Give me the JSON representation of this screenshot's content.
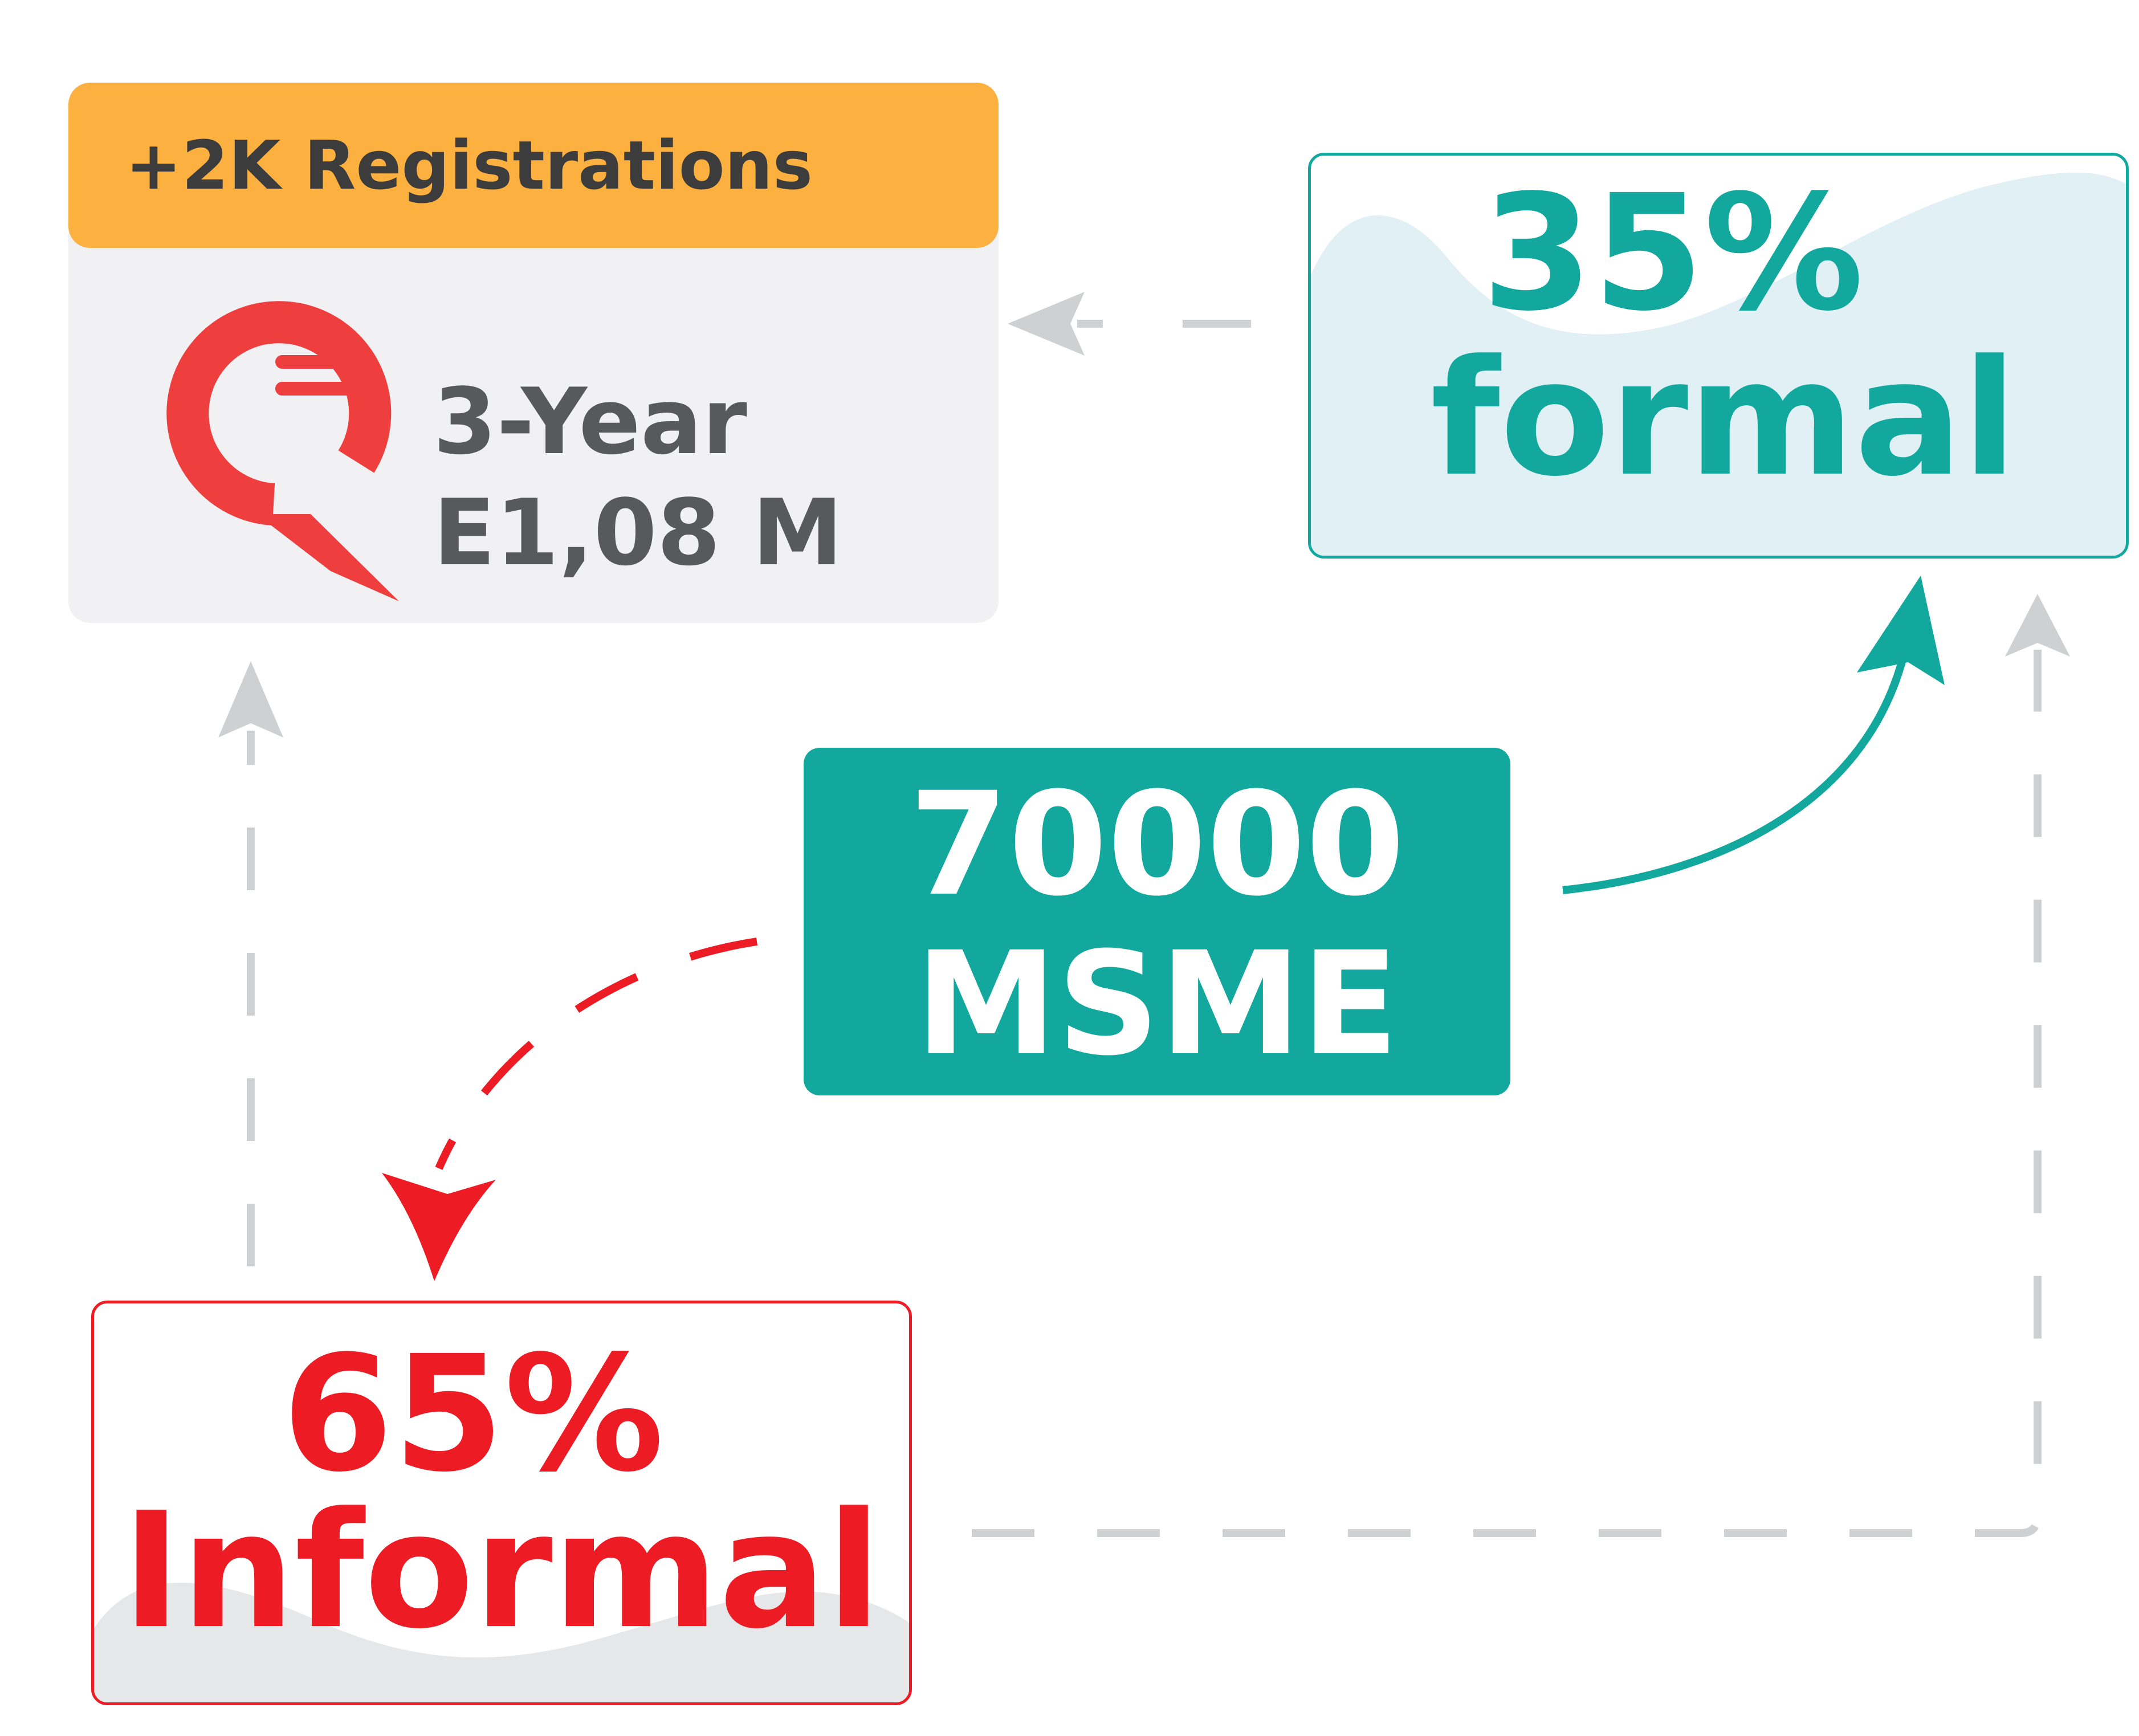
{
  "registrations_card": {
    "header": "+2K Registrations",
    "line_1": "3-Year",
    "line_2": "E1,08 M",
    "icon": "chat-bubble-icon"
  },
  "formal_card": {
    "percent": "35%",
    "label": "formal"
  },
  "msme_box": {
    "count": "70000",
    "label": "MSME"
  },
  "informal_card": {
    "percent": "65%",
    "label": "Informal"
  },
  "colors": {
    "teal": "#13a89e",
    "red": "#ed1c24",
    "orange": "#fbb040",
    "gray_text": "#58595b",
    "dash_gray": "#cfd0d2",
    "card_bg": "#f1f1f3"
  }
}
